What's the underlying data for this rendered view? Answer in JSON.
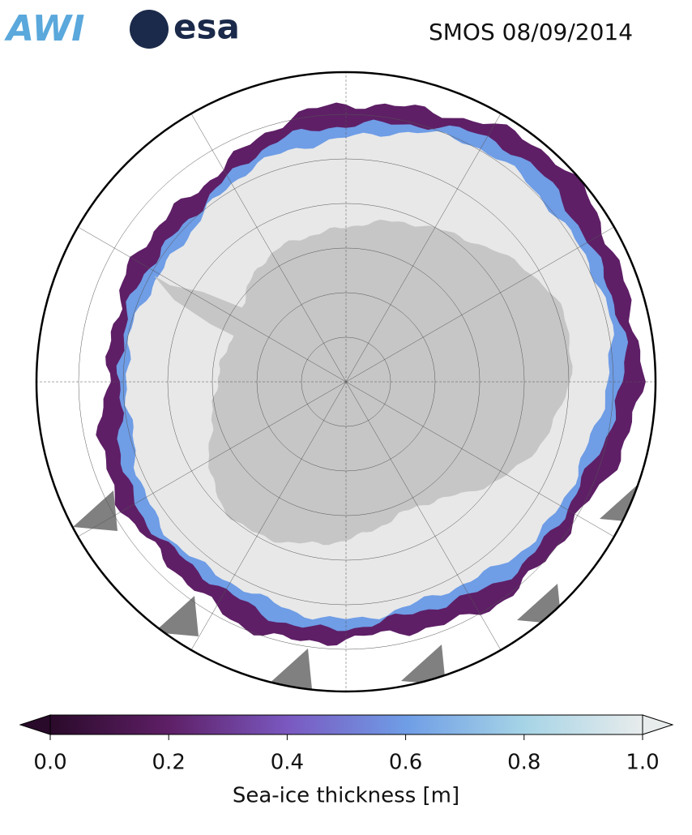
{
  "logos": [
    "AWI",
    "esa"
  ],
  "title": "SMOS 08/09/2014",
  "colorbar": {
    "label": "Sea-ice thickness [m]",
    "lim": [
      0,
      1
    ],
    "ticks": [
      {
        "value": 0,
        "label": "0.0"
      },
      0.2,
      0.4,
      0.6,
      0.8,
      {
        "value": 1,
        "label": "1.0"
      }
    ],
    "colormap": [
      "#2a0a2a",
      "#5e1f66",
      "#7a58c0",
      "#6f9de6",
      "#a6d4e6",
      "#e8ecec"
    ]
  }
}
